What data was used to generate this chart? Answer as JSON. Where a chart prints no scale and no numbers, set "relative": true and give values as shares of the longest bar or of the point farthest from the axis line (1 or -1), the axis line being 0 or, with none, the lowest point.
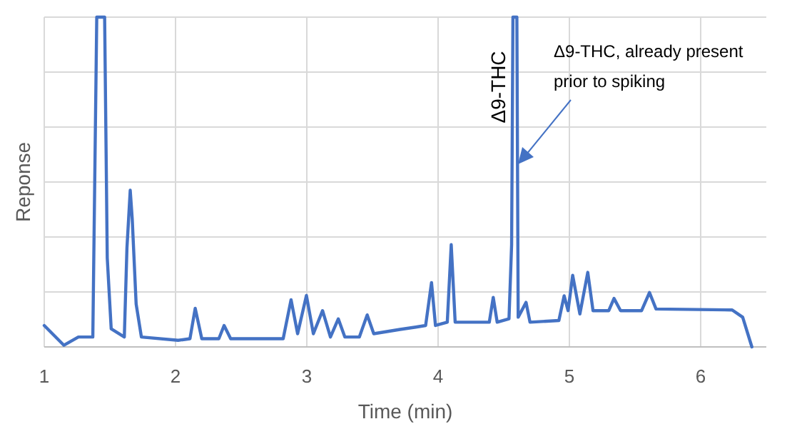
{
  "chart_data": {
    "type": "line",
    "relative": true,
    "xlabel": "Time (min)",
    "ylabel": "Reponse",
    "xlim": [
      1,
      6.5
    ],
    "xticks": [
      1,
      2,
      3,
      4,
      5,
      6
    ],
    "grid": true,
    "marker": "none",
    "line_style": "solid",
    "annotations": [
      "Δ9-THC",
      "Δ9-THC, already present prior to spiking"
    ],
    "series": [
      {
        "color": "#4472c4",
        "x": [
          1.0,
          1.15,
          1.26,
          1.37,
          1.4,
          1.46,
          1.48,
          1.51,
          1.61,
          1.63,
          1.655,
          1.67,
          1.7,
          1.74,
          2.02,
          2.11,
          2.15,
          2.2,
          2.33,
          2.37,
          2.42,
          2.82,
          2.88,
          2.93,
          2.997,
          3.05,
          3.12,
          3.18,
          3.24,
          3.29,
          3.4,
          3.46,
          3.51,
          3.71,
          3.83,
          3.905,
          3.95,
          3.98,
          4.07,
          4.1,
          4.13,
          4.39,
          4.42,
          4.45,
          4.54,
          4.56,
          4.57,
          4.6,
          4.61,
          4.67,
          4.7,
          4.92,
          4.96,
          4.99,
          5.025,
          5.08,
          5.14,
          5.18,
          5.3,
          5.34,
          5.39,
          5.55,
          5.61,
          5.66,
          6.24,
          6.32,
          6.39
        ],
        "values": [
          0.065,
          0.005,
          0.03,
          0.03,
          1,
          1,
          0.27,
          0.055,
          0.03,
          0.3,
          0.475,
          0.39,
          0.13,
          0.03,
          0.02,
          0.025,
          0.117,
          0.025,
          0.025,
          0.065,
          0.025,
          0.025,
          0.143,
          0.04,
          0.156,
          0.04,
          0.11,
          0.03,
          0.085,
          0.03,
          0.03,
          0.097,
          0.04,
          0.053,
          0.06,
          0.065,
          0.195,
          0.065,
          0.075,
          0.31,
          0.075,
          0.075,
          0.15,
          0.075,
          0.085,
          0.31,
          1,
          1,
          0.09,
          0.135,
          0.075,
          0.08,
          0.155,
          0.11,
          0.217,
          0.1,
          0.226,
          0.11,
          0.11,
          0.147,
          0.11,
          0.11,
          0.165,
          0.115,
          0.112,
          0.09,
          0.0
        ]
      }
    ]
  }
}
